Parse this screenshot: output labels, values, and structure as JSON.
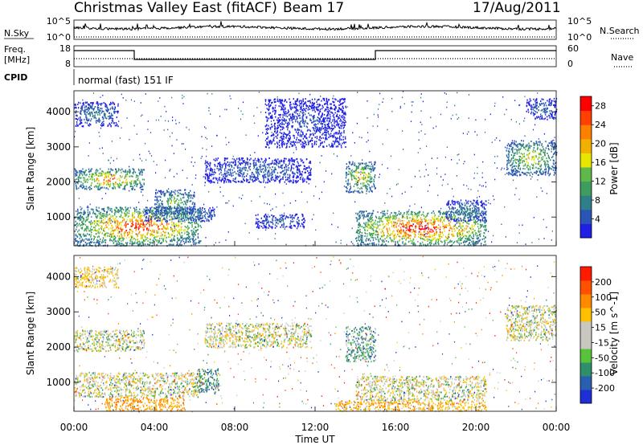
{
  "header": {
    "title": "Christmas Valley East (fitACF)",
    "beam": "Beam 17",
    "date": "17/Aug/2011"
  },
  "left_labels": {
    "nsky": "N.Sky",
    "freq_line1": "Freq.",
    "freq_line2": "[MHz]",
    "cpid": "CPID"
  },
  "right_labels": {
    "nsearch": "N.Search",
    "nave": "Nave"
  },
  "cpid_text": "normal (fast) 151 IF",
  "noise_panel": {
    "left_ticks": [
      "10^5",
      "10^0"
    ],
    "right_ticks": [
      "10^5",
      "10^0"
    ]
  },
  "freq_panel": {
    "left_ticks": [
      "18",
      "8"
    ],
    "right_ticks": [
      "60",
      "0"
    ],
    "steps": [
      {
        "t": 0.0,
        "level": "high"
      },
      {
        "t": 3.0,
        "level": "low"
      },
      {
        "t": 15.0,
        "level": "high"
      },
      {
        "t": 24.0,
        "level": "high"
      }
    ]
  },
  "x_axis": {
    "label": "Time UT",
    "ticks": [
      "00:00",
      "04:00",
      "08:00",
      "12:00",
      "16:00",
      "20:00",
      "00:00"
    ],
    "range_hours": [
      0,
      24
    ]
  },
  "y_axis": {
    "label": "Slant Range [km]",
    "ticks": [
      "1000",
      "2000",
      "3000",
      "4000"
    ],
    "range_km": [
      180,
      4600
    ]
  },
  "power_colorbar": {
    "label": "Power [dB]",
    "ticks": [
      "4",
      "8",
      "12",
      "16",
      "20",
      "24",
      "28"
    ],
    "colors": [
      "#1f1fe6",
      "#2a55b4",
      "#2f7f8a",
      "#3e9c5e",
      "#5fb84a",
      "#e6e600",
      "#f2b000",
      "#ff7f00",
      "#ff4000",
      "#ff0000"
    ]
  },
  "velocity_colorbar": {
    "label": "Velocity [m s^-1]",
    "ticks": [
      "200",
      "100",
      "50",
      "15",
      "-15",
      "-50",
      "-100",
      "-200"
    ],
    "colors": [
      "#1f2fd6",
      "#2a5fb0",
      "#2f8f6a",
      "#57c23a",
      "#c8c8c0",
      "#c8c8c0",
      "#ffc000",
      "#ff8a00",
      "#ff5000",
      "#ff1a00"
    ]
  },
  "chart_data": {
    "type": "heatmap",
    "title": "Christmas Valley East (fitACF)",
    "subtitle": "Beam 17 — 17/Aug/2011",
    "xlabel": "Time UT",
    "ylabel": "Slant Range [km]",
    "xlim_hours": [
      0,
      24
    ],
    "ylim_km": [
      180,
      4600
    ],
    "panels": [
      {
        "name": "Power",
        "colorbar_label": "Power [dB]",
        "clim": [
          0,
          30
        ],
        "regions": [
          {
            "t0": 0.0,
            "t1": 6.3,
            "r0": 200,
            "r1": 1300,
            "peak": 27
          },
          {
            "t0": 0.0,
            "t1": 3.5,
            "r0": 1800,
            "r1": 2400,
            "peak": 24
          },
          {
            "t0": 3.5,
            "t1": 7.0,
            "r0": 900,
            "r1": 1300,
            "peak": 10
          },
          {
            "t0": 4.0,
            "t1": 6.0,
            "r0": 1100,
            "r1": 1800,
            "peak": 14
          },
          {
            "t0": 6.5,
            "t1": 11.8,
            "r0": 2000,
            "r1": 2700,
            "peak": 6
          },
          {
            "t0": 13.5,
            "t1": 15.0,
            "r0": 1700,
            "r1": 2600,
            "peak": 20
          },
          {
            "t0": 14.0,
            "t1": 20.5,
            "r0": 200,
            "r1": 1200,
            "peak": 29
          },
          {
            "t0": 18.5,
            "t1": 20.5,
            "r0": 900,
            "r1": 1500,
            "peak": 8
          },
          {
            "t0": 21.5,
            "t1": 24.0,
            "r0": 2200,
            "r1": 3200,
            "peak": 18
          },
          {
            "t0": 0.0,
            "t1": 2.2,
            "r0": 3600,
            "r1": 4300,
            "peak": 8
          },
          {
            "t0": 9.5,
            "t1": 13.5,
            "r0": 3000,
            "r1": 4400,
            "peak": 4
          },
          {
            "t0": 22.5,
            "t1": 24.0,
            "r0": 3800,
            "r1": 4400,
            "peak": 6
          },
          {
            "t0": 9.0,
            "t1": 11.5,
            "r0": 700,
            "r1": 1100,
            "peak": 6
          }
        ]
      },
      {
        "name": "Velocity",
        "colorbar_label": "Velocity [m s^-1]",
        "clim": [
          -200,
          200
        ],
        "regions": [
          {
            "t0": 0.0,
            "t1": 6.3,
            "r0": 600,
            "r1": 1300,
            "v": 0
          },
          {
            "t0": 1.5,
            "t1": 5.5,
            "r0": 200,
            "r1": 600,
            "v": -60
          },
          {
            "t0": 0.0,
            "t1": 3.5,
            "r0": 1900,
            "r1": 2500,
            "v": 0
          },
          {
            "t0": 6.0,
            "t1": 7.2,
            "r0": 700,
            "r1": 1400,
            "v": 40
          },
          {
            "t0": 6.5,
            "t1": 11.8,
            "r0": 2000,
            "r1": 2700,
            "v": 0
          },
          {
            "t0": 13.5,
            "t1": 15.0,
            "r0": 1600,
            "r1": 2600,
            "v": 30
          },
          {
            "t0": 14.0,
            "t1": 20.5,
            "r0": 500,
            "r1": 1200,
            "v": 0
          },
          {
            "t0": 13.0,
            "t1": 20.5,
            "r0": 200,
            "r1": 500,
            "v": -40
          },
          {
            "t0": 21.5,
            "t1": 24.0,
            "r0": 2200,
            "r1": 3200,
            "v": 0
          },
          {
            "t0": 0.0,
            "t1": 2.2,
            "r0": 3700,
            "r1": 4300,
            "v": -20
          }
        ]
      }
    ],
    "grid": false
  }
}
